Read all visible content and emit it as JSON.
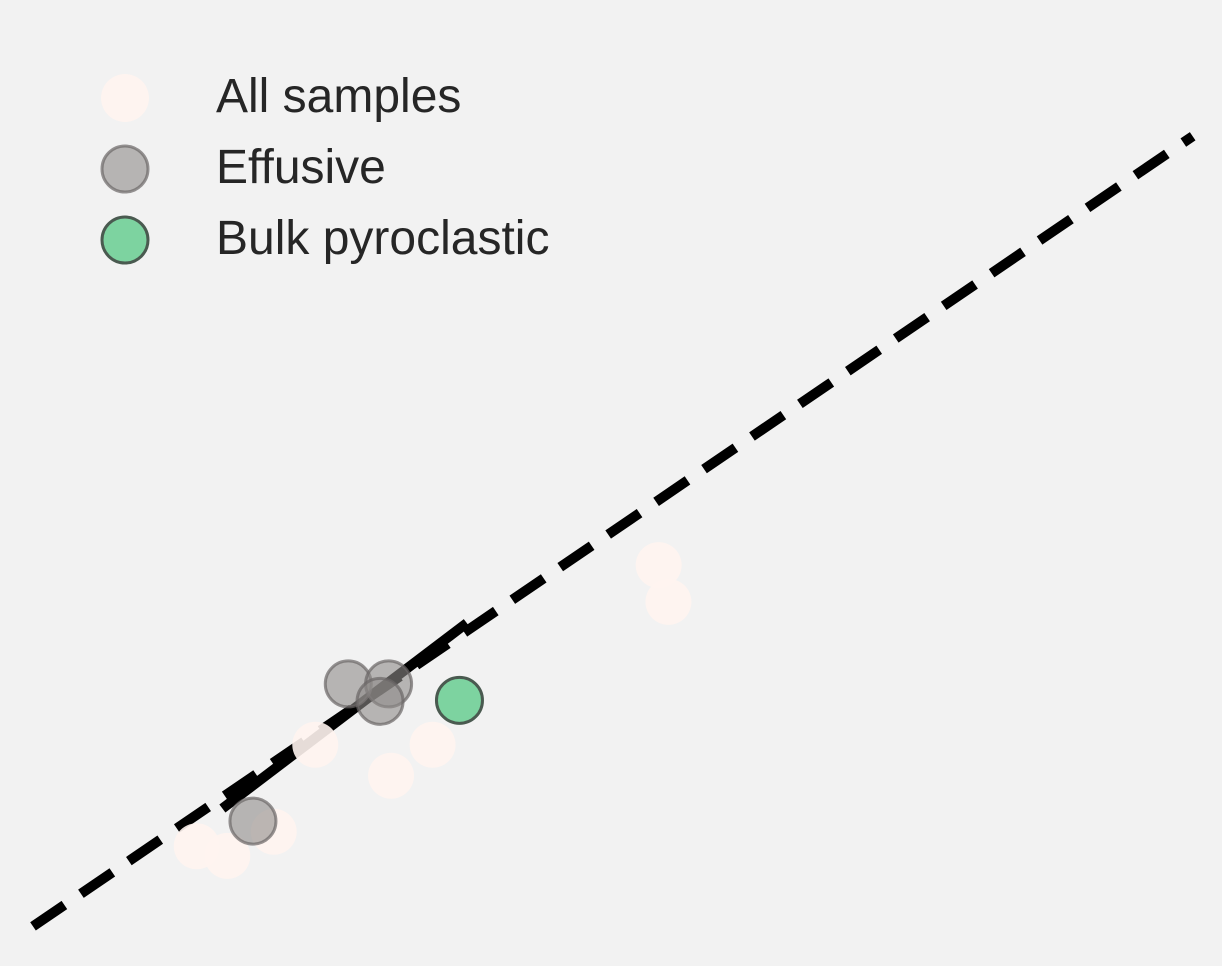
{
  "chart_data": {
    "type": "scatter",
    "title": "",
    "xlabel": "",
    "ylabel": "",
    "xlim": [
      0,
      100
    ],
    "ylim": [
      0,
      100
    ],
    "grid": false,
    "legend_position": "top-left",
    "series": [
      {
        "name": "All samples",
        "color": "#fff4f0",
        "edge": "none",
        "opacity": 0.9,
        "points": [
          {
            "x": 16.1,
            "y": 12.4
          },
          {
            "x": 18.6,
            "y": 11.4
          },
          {
            "x": 22.4,
            "y": 13.9
          },
          {
            "x": 25.8,
            "y": 22.9
          },
          {
            "x": 32.0,
            "y": 19.7
          },
          {
            "x": 35.4,
            "y": 22.9
          },
          {
            "x": 53.9,
            "y": 41.5
          },
          {
            "x": 54.7,
            "y": 37.7
          }
        ]
      },
      {
        "name": "Effusive",
        "color": "#8e8a88",
        "edge": "#6b6766",
        "opacity": 0.6,
        "points": [
          {
            "x": 20.7,
            "y": 15.0
          },
          {
            "x": 28.5,
            "y": 29.2
          },
          {
            "x": 31.8,
            "y": 29.2
          },
          {
            "x": 31.1,
            "y": 27.4
          }
        ]
      },
      {
        "name": "Bulk pyroclastic",
        "color": "#7dd3a0",
        "edge": "#4a5a50",
        "opacity": 1,
        "points": [
          {
            "x": 37.6,
            "y": 27.5
          }
        ]
      }
    ],
    "lines": [
      {
        "style": "dashed",
        "x": [
          2.7,
          97.6
        ],
        "y": [
          4.1,
          85.9
        ]
      },
      {
        "style": "solid",
        "x": [
          18.2,
          38.2
        ],
        "y": [
          16.3,
          35.5
        ]
      }
    ]
  }
}
